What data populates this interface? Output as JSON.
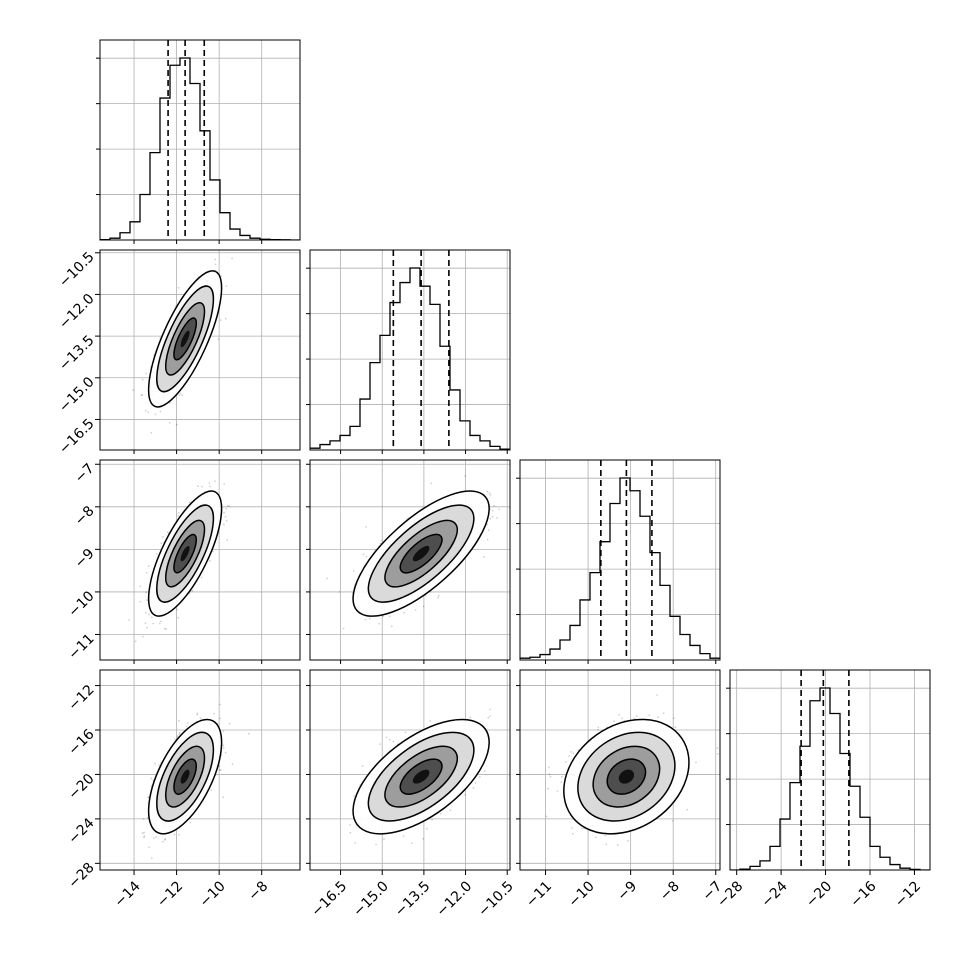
{
  "chart_data": {
    "type": "corner",
    "parameters": 4,
    "grid": true,
    "colors": {
      "line": "#000000",
      "grid": "#b0b0b0",
      "points": "#000000",
      "background": "#ffffff"
    },
    "ranges": [
      [
        -15.6,
        -6.2
      ],
      [
        -17.6,
        -10.4
      ],
      [
        -11.6,
        -6.9
      ],
      [
        -28.6,
        -10.6
      ]
    ],
    "ticks": [
      {
        "values": [
          -14,
          -12,
          -10,
          -8
        ],
        "labels": [
          "−14",
          "−12",
          "−10",
          "−8"
        ]
      },
      {
        "values": [
          -16.5,
          -15.0,
          -13.5,
          -12.0,
          -10.5
        ],
        "labels": [
          "−16.5",
          "−15.0",
          "−13.5",
          "−12.0",
          "−10.5"
        ]
      },
      {
        "values": [
          -11,
          -10,
          -9,
          -8,
          -7
        ],
        "labels": [
          "−11",
          "−10",
          "−9",
          "−8",
          "−7"
        ]
      },
      {
        "values": [
          -28,
          -24,
          -20,
          -16,
          -12
        ],
        "labels": [
          "−28",
          "−24",
          "−20",
          "−16",
          "−12"
        ]
      }
    ],
    "histograms": [
      {
        "quantiles": [
          -12.4,
          -11.6,
          -10.7
        ],
        "bin_edges": [
          -15.6,
          -15.13,
          -14.66,
          -14.19,
          -13.72,
          -13.25,
          -12.78,
          -12.31,
          -11.84,
          -11.37,
          -10.9,
          -10.43,
          -9.96,
          -9.49,
          -9.02,
          -8.55,
          -8.08,
          -7.61,
          -7.14,
          -6.67,
          -6.2
        ],
        "counts": [
          0.002,
          0.01,
          0.04,
          0.1,
          0.25,
          0.48,
          0.78,
          0.96,
          1.0,
          0.86,
          0.6,
          0.33,
          0.15,
          0.06,
          0.025,
          0.01,
          0.004,
          0.002,
          0.001,
          0.0
        ]
      },
      {
        "quantiles": [
          -14.6,
          -13.6,
          -12.6
        ],
        "bin_edges": [
          -17.6,
          -17.24,
          -16.88,
          -16.52,
          -16.16,
          -15.8,
          -15.44,
          -15.08,
          -14.72,
          -14.36,
          -14.0,
          -13.64,
          -13.28,
          -12.92,
          -12.56,
          -12.2,
          -11.84,
          -11.48,
          -11.12,
          -10.76,
          -10.4
        ],
        "counts": [
          0.01,
          0.03,
          0.05,
          0.08,
          0.13,
          0.28,
          0.48,
          0.63,
          0.81,
          0.92,
          1.0,
          0.9,
          0.8,
          0.57,
          0.33,
          0.16,
          0.08,
          0.05,
          0.02,
          0.005
        ]
      },
      {
        "quantiles": [
          -9.7,
          -9.1,
          -8.5
        ],
        "bin_edges": [
          -11.6,
          -11.365,
          -11.13,
          -10.895,
          -10.66,
          -10.425,
          -10.19,
          -9.955,
          -9.72,
          -9.485,
          -9.25,
          -9.015,
          -8.78,
          -8.545,
          -8.31,
          -8.075,
          -7.84,
          -7.605,
          -7.37,
          -7.135,
          -6.9
        ],
        "counts": [
          0.01,
          0.015,
          0.03,
          0.06,
          0.11,
          0.19,
          0.33,
          0.48,
          0.65,
          0.86,
          1.0,
          0.93,
          0.79,
          0.59,
          0.41,
          0.24,
          0.14,
          0.08,
          0.035,
          0.01
        ]
      },
      {
        "quantiles": [
          -22.2,
          -20.2,
          -17.9
        ],
        "bin_edges": [
          -28.6,
          -27.7,
          -26.8,
          -25.9,
          -25.0,
          -24.1,
          -23.2,
          -22.3,
          -21.4,
          -20.5,
          -19.6,
          -18.7,
          -17.8,
          -16.9,
          -16.0,
          -15.1,
          -14.2,
          -13.3,
          -12.4,
          -11.5,
          -10.6
        ],
        "counts": [
          0.0,
          0.005,
          0.02,
          0.05,
          0.13,
          0.28,
          0.48,
          0.68,
          0.93,
          1.0,
          0.86,
          0.64,
          0.46,
          0.29,
          0.13,
          0.07,
          0.03,
          0.01,
          0.003,
          0.0
        ]
      }
    ],
    "pairs": [
      {
        "row": 1,
        "col": 0,
        "mean": [
          -11.6,
          -13.6
        ],
        "sd": [
          0.7,
          1.0
        ],
        "rho": 0.75
      },
      {
        "row": 2,
        "col": 0,
        "mean": [
          -11.6,
          -9.1
        ],
        "sd": [
          0.7,
          0.6
        ],
        "rho": 0.72
      },
      {
        "row": 2,
        "col": 1,
        "mean": [
          -13.6,
          -9.1
        ],
        "sd": [
          1.0,
          0.6
        ],
        "rho": 0.72
      },
      {
        "row": 3,
        "col": 0,
        "mean": [
          -11.6,
          -20.2
        ],
        "sd": [
          0.7,
          2.1
        ],
        "rho": 0.6
      },
      {
        "row": 3,
        "col": 1,
        "mean": [
          -13.6,
          -20.2
        ],
        "sd": [
          1.0,
          2.1
        ],
        "rho": 0.6
      },
      {
        "row": 3,
        "col": 2,
        "mean": [
          -9.1,
          -20.2
        ],
        "sd": [
          0.6,
          2.1
        ],
        "rho": 0.25
      }
    ]
  }
}
